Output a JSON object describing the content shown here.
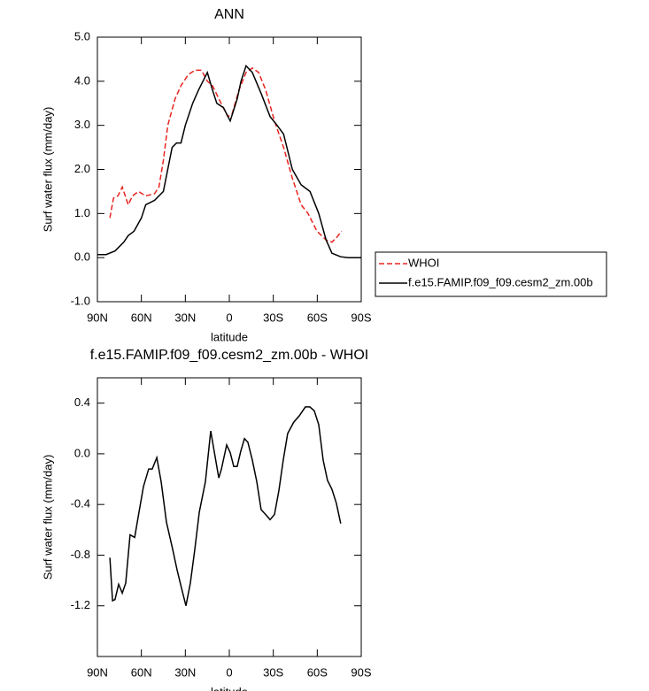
{
  "chart_data": [
    {
      "type": "line",
      "title": "ANN",
      "xlabel": "latitude",
      "ylabel": "Surf water flux (mm/day)",
      "xlim": [
        90,
        -90
      ],
      "xticks": [
        {
          "value": 90,
          "label": "90N"
        },
        {
          "value": 60,
          "label": "60N"
        },
        {
          "value": 30,
          "label": "30N"
        },
        0,
        {
          "value": -30,
          "label": "30S"
        },
        {
          "value": -60,
          "label": "60S"
        },
        {
          "value": -90,
          "label": "90S"
        }
      ],
      "ylim": [
        -1,
        5
      ],
      "yticks": [
        {
          "value": -1,
          "label": "-1.0"
        },
        {
          "value": 0,
          "label": "0.0"
        },
        {
          "value": 1,
          "label": "1.0"
        },
        {
          "value": 2,
          "label": "2.0"
        },
        {
          "value": 3,
          "label": "3.0"
        },
        {
          "value": 4,
          "label": "4.0"
        },
        {
          "value": 5,
          "label": "5.0"
        }
      ],
      "series": [
        {
          "name": "WHOI",
          "color": "#e8241f",
          "dashed": true,
          "x": [
            81.5,
            79,
            76,
            73,
            69,
            66,
            62,
            57,
            51,
            48,
            45,
            42,
            37,
            33,
            28,
            23.5,
            19,
            15,
            11.5,
            5.6,
            1,
            -1.8,
            -6.6,
            -11.4,
            -15.7,
            -20,
            -24.8,
            -30.8,
            -37,
            -43,
            -49,
            -53.7,
            -59.8,
            -66,
            -70,
            -73,
            -76.6
          ],
          "values": [
            0.9,
            1.35,
            1.4,
            1.6,
            1.2,
            1.4,
            1.5,
            1.4,
            1.45,
            1.6,
            2.2,
            3.0,
            3.6,
            3.9,
            4.15,
            4.25,
            4.25,
            4.0,
            3.9,
            3.5,
            3.2,
            3.25,
            3.8,
            4.2,
            4.3,
            4.2,
            3.8,
            3.1,
            2.5,
            1.8,
            1.2,
            1.0,
            0.6,
            0.4,
            0.35,
            0.45,
            0.6
          ]
        },
        {
          "name": "f.e15.FAMIP.f09_f09.cesm2_zm.00b",
          "color": "#000000",
          "dashed": false,
          "x": [
            90,
            84,
            78,
            72,
            69,
            65,
            60,
            57,
            51,
            45,
            39,
            36,
            33,
            30,
            25,
            21,
            15,
            11.5,
            8.5,
            4,
            -0.6,
            -5.4,
            -8,
            -11.4,
            -15.7,
            -22,
            -27.8,
            -32.6,
            -37,
            -43,
            -49,
            -55,
            -61,
            -66,
            -70,
            -76,
            -81,
            -90
          ],
          "values": [
            0.07,
            0.07,
            0.15,
            0.35,
            0.5,
            0.6,
            0.9,
            1.2,
            1.3,
            1.5,
            2.5,
            2.6,
            2.6,
            3.0,
            3.5,
            3.8,
            4.2,
            3.8,
            3.5,
            3.4,
            3.1,
            3.6,
            4.0,
            4.35,
            4.2,
            3.7,
            3.2,
            3.0,
            2.8,
            2.0,
            1.65,
            1.5,
            1.0,
            0.4,
            0.1,
            0.02,
            0,
            0
          ]
        }
      ]
    },
    {
      "type": "line",
      "title": "f.e15.FAMIP.f09_f09.cesm2_zm.00b - WHOI",
      "xlabel": "latitude",
      "ylabel": "Surf water flux (mm/day)",
      "xlim": [
        90,
        -90
      ],
      "xticks": [
        {
          "value": 90,
          "label": "90N"
        },
        {
          "value": 60,
          "label": "60N"
        },
        {
          "value": 30,
          "label": "30N"
        },
        0,
        {
          "value": -30,
          "label": "30S"
        },
        {
          "value": -60,
          "label": "60S"
        },
        {
          "value": -90,
          "label": "90S"
        }
      ],
      "ylim": [
        -1.6,
        0.6
      ],
      "yticks": [
        -1.2,
        -0.8,
        -0.4,
        {
          "value": 0,
          "label": "0.0"
        },
        0.4
      ],
      "series": [
        {
          "color": "#000000",
          "dashed": false,
          "x": [
            81.5,
            79.7,
            78,
            75.5,
            73,
            70.7,
            67.7,
            64.6,
            61.6,
            58.6,
            55,
            52.6,
            49.5,
            46.5,
            42.9,
            38.7,
            35.6,
            32.6,
            29.6,
            26.6,
            23.5,
            20.5,
            16.3,
            12.7,
            10.3,
            7.2,
            5.4,
            1.8,
            -0.6,
            -3,
            -5.4,
            -7.8,
            -10.3,
            -12.7,
            -15.7,
            -18.7,
            -21.7,
            -24.8,
            -27.8,
            -30.8,
            -33.8,
            -36.8,
            -39.8,
            -44,
            -47.7,
            -51.9,
            -54.9,
            -57.9,
            -61,
            -64,
            -67,
            -70,
            -73,
            -76
          ],
          "values": [
            -0.82,
            -1.16,
            -1.15,
            -1.03,
            -1.1,
            -1.02,
            -0.64,
            -0.66,
            -0.46,
            -0.26,
            -0.12,
            -0.12,
            -0.03,
            -0.22,
            -0.54,
            -0.75,
            -0.92,
            -1.06,
            -1.2,
            -1.02,
            -0.75,
            -0.46,
            -0.22,
            0.18,
            0.02,
            -0.19,
            -0.12,
            0.07,
            0.01,
            -0.1,
            -0.1,
            0.02,
            0.12,
            0.09,
            -0.05,
            -0.22,
            -0.44,
            -0.48,
            -0.52,
            -0.48,
            -0.29,
            -0.05,
            0.16,
            0.25,
            0.3,
            0.37,
            0.37,
            0.34,
            0.23,
            -0.05,
            -0.21,
            -0.28,
            -0.39,
            -0.55
          ]
        }
      ]
    }
  ]
}
